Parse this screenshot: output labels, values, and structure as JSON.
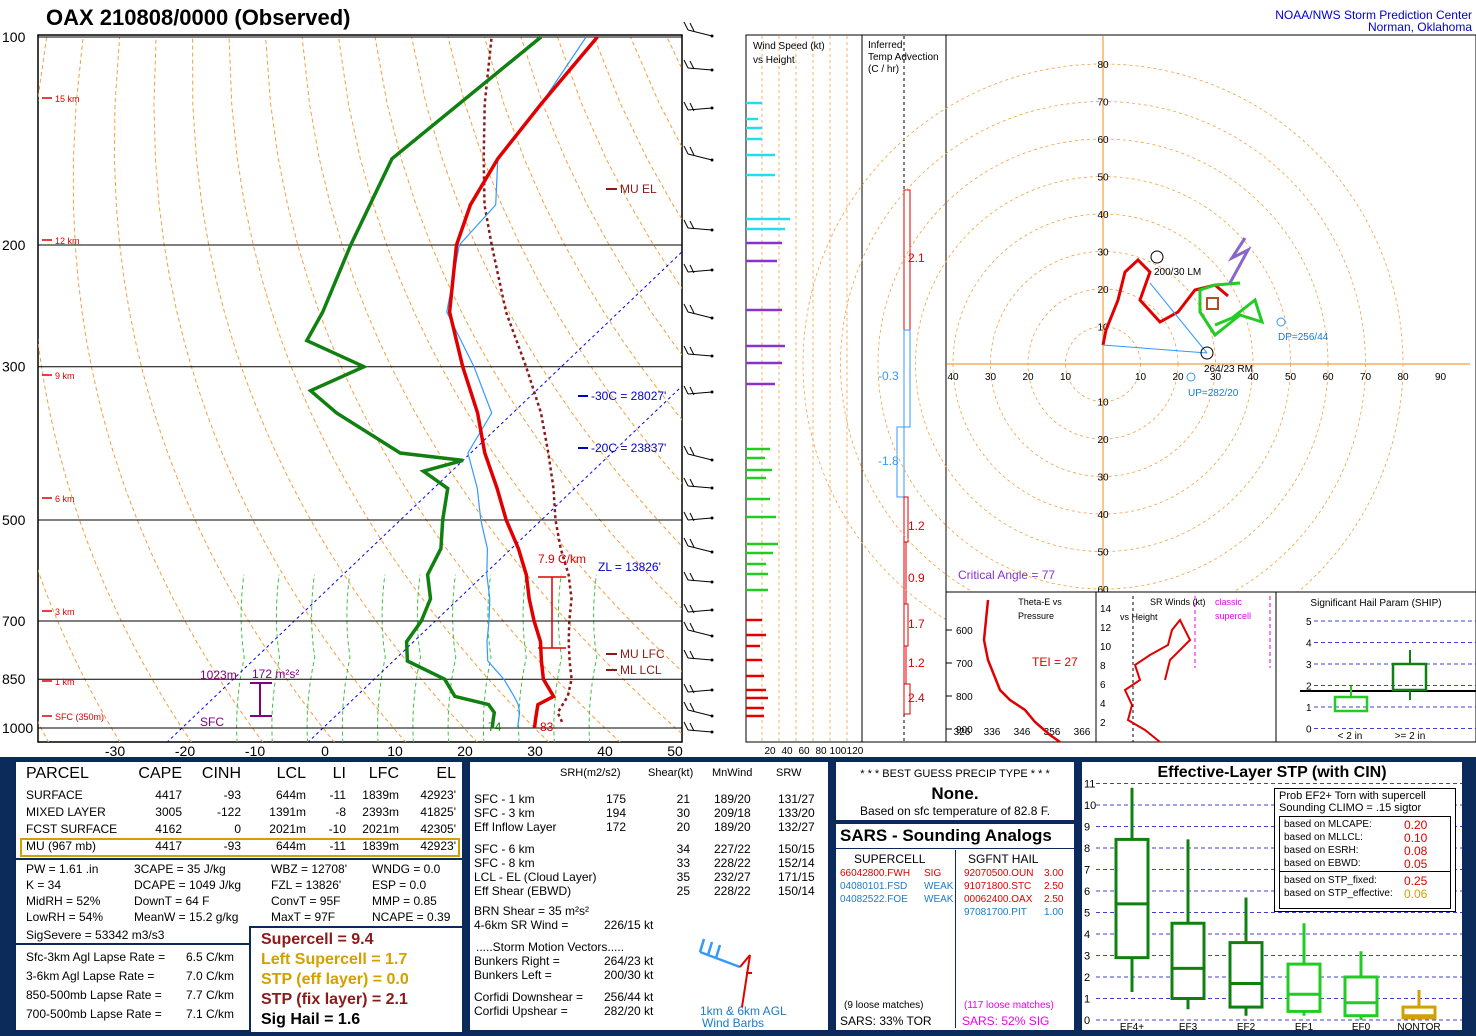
{
  "header": {
    "title": "OAX   210808/0000  (Observed)",
    "credit_line1": "NOAA/NWS Storm Prediction Center",
    "credit_line2": "Norman, Oklahoma"
  },
  "colors": {
    "panel_border": "#0a2a5e",
    "bottom_bg": "#0d2b5a",
    "temp": "#e00000",
    "dew": "#108010",
    "wetbulb": "#3399ff",
    "isotherm": "#0000ee",
    "dryadiabat": "#f0a040",
    "moistadiabat": "#40c040",
    "mixing": "#a000a0",
    "parcel": "#8b1a1a"
  },
  "chart_data": {
    "type": "line",
    "title": "",
    "skewt": {
      "pressure_ticks": [
        "100",
        "200",
        "300",
        "500",
        "700",
        "850",
        "1000"
      ],
      "temp_ticks": [
        "-30",
        "-20",
        "-10",
        "0",
        "10",
        "20",
        "30",
        "40",
        "50"
      ],
      "height_marks": [
        "15 km",
        "12 km",
        "9 km",
        "6 km",
        "3 km",
        "1 km",
        "SFC (350m)"
      ],
      "temperature_profile": [
        [
          1000,
          30
        ],
        [
          975,
          29
        ],
        [
          950,
          28
        ],
        [
          925,
          27
        ],
        [
          900,
          28
        ],
        [
          850,
          24
        ],
        [
          800,
          21
        ],
        [
          750,
          18
        ],
        [
          700,
          14
        ],
        [
          650,
          10
        ],
        [
          600,
          6
        ],
        [
          550,
          1
        ],
        [
          500,
          -5
        ],
        [
          450,
          -11
        ],
        [
          400,
          -18
        ],
        [
          350,
          -25
        ],
        [
          300,
          -34
        ],
        [
          250,
          -44
        ],
        [
          200,
          -53
        ],
        [
          175,
          -57
        ],
        [
          150,
          -60
        ],
        [
          125,
          -62
        ],
        [
          100,
          -64
        ]
      ],
      "dewpoint_profile": [
        [
          1000,
          24
        ],
        [
          975,
          23
        ],
        [
          950,
          22
        ],
        [
          925,
          20
        ],
        [
          900,
          14
        ],
        [
          850,
          10
        ],
        [
          800,
          2
        ],
        [
          750,
          -1
        ],
        [
          700,
          -2
        ],
        [
          650,
          -4
        ],
        [
          600,
          -8
        ],
        [
          550,
          -10
        ],
        [
          500,
          -14
        ],
        [
          450,
          -18
        ],
        [
          425,
          -24
        ],
        [
          410,
          -20
        ],
        [
          400,
          -30
        ],
        [
          350,
          -45
        ],
        [
          325,
          -52
        ],
        [
          300,
          -48
        ],
        [
          275,
          -60
        ],
        [
          250,
          -62
        ],
        [
          200,
          -68
        ],
        [
          150,
          -75
        ],
        [
          100,
          -72
        ]
      ],
      "annotations": {
        "mu_el": "MU  EL",
        "mu_lfc": "MU  LFC",
        "ml_lcl": "ML  LCL",
        "minus30": "-30C = 28027'",
        "minus20": "-20C = 23837'",
        "zl": "ZL = 13826'",
        "lapse": "7.9 C/km",
        "srh_depth": "1023m",
        "srh_value": "172 m²s²",
        "sfc_label": "SFC",
        "sfc_temp": "74",
        "sfc_tval": "83"
      }
    },
    "wind_speed_panel": {
      "title": "Wind Speed (kt)\nvs Height",
      "axis": [
        "20",
        "40",
        "60",
        "80",
        "100",
        "120"
      ]
    },
    "temp_advection": {
      "title": "Inferred\nTemp Advection\n(C / hr)",
      "values": [
        "2.1",
        "-0.3",
        "-1.8",
        "1.2",
        "0.9",
        "1.7",
        "1.2",
        "2.4"
      ]
    },
    "hodograph": {
      "rings": [
        "10",
        "20",
        "30",
        "40",
        "50",
        "60",
        "70",
        "80"
      ],
      "x_ticks": [
        "40",
        "30",
        "20",
        "10",
        "10",
        "20",
        "30",
        "40",
        "50",
        "60",
        "70",
        "80",
        "90"
      ],
      "labels": {
        "lm": "200/30 LM",
        "rm": "264/23 RM",
        "dp": "DP=256/44",
        "up": "UP=282/20",
        "crit": "Critical Angle = 77"
      }
    },
    "theta_e": {
      "title": "Theta-E vs\nPressure",
      "tei": "TEI = 27",
      "p_ticks": [
        "600",
        "700",
        "800",
        "900"
      ],
      "x_ticks": [
        "326",
        "336",
        "346",
        "356",
        "366"
      ]
    },
    "sr_winds": {
      "title": "SR Winds (kt)\nvs Height",
      "sub": "classic\nsupercell",
      "y_ticks": [
        "14",
        "12",
        "10",
        "8",
        "6",
        "4",
        "2"
      ]
    },
    "ship": {
      "title": "Significant Hail Param (SHIP)",
      "y_ticks": [
        "5",
        "4",
        "3",
        "2",
        "1",
        "0"
      ],
      "x_labels": [
        "< 2 in",
        ">= 2 in"
      ]
    }
  },
  "parcel_table": {
    "headers": [
      "PARCEL",
      "CAPE",
      "CINH",
      "LCL",
      "LI",
      "LFC",
      "EL"
    ],
    "rows": [
      [
        "SURFACE",
        "4417",
        "-93",
        "644m",
        "-11",
        "1839m",
        "42923'"
      ],
      [
        "MIXED LAYER",
        "3005",
        "-122",
        "1391m",
        "-8",
        "2393m",
        "41825'"
      ],
      [
        "FCST SURFACE",
        "4162",
        "0",
        "2021m",
        "-10",
        "2021m",
        "42305'"
      ],
      [
        "MU  (967 mb)",
        "4417",
        "-93",
        "644m",
        "-11",
        "1839m",
        "42923'"
      ]
    ]
  },
  "indices": [
    [
      "PW = 1.61 .in",
      "3CAPE = 35 J/kg",
      "WBZ = 12708'",
      "WNDG = 0.0"
    ],
    [
      "K = 34",
      "DCAPE = 1049 J/kg",
      "FZL = 13826'",
      "ESP = 0.0"
    ],
    [
      "MidRH = 52%",
      "DownT = 64 F",
      "ConvT = 95F",
      "MMP = 0.85"
    ],
    [
      "LowRH = 54%",
      "MeanW = 15.2 g/kg",
      "MaxT = 97F",
      "NCAPE = 0.39"
    ]
  ],
  "sigsevere": "SigSevere = 53342 m3/s3",
  "lapse_rates": [
    [
      "Sfc-3km Agl Lapse Rate =",
      "6.5 C/km"
    ],
    [
      "3-6km Agl Lapse Rate =",
      "7.0 C/km"
    ],
    [
      "850-500mb Lapse Rate =",
      "7.7 C/km"
    ],
    [
      "700-500mb Lapse Rate =",
      "7.1 C/km"
    ]
  ],
  "composites": [
    {
      "text": "Supercell = 9.4",
      "color": "#8b1a1a"
    },
    {
      "text": "Left Supercell = 1.7",
      "color": "#d4a000"
    },
    {
      "text": "STP (eff layer) = 0.0",
      "color": "#d4a000"
    },
    {
      "text": "STP (fix layer) = 2.1",
      "color": "#8b1a1a"
    },
    {
      "text": "Sig Hail = 1.6",
      "color": "#000000"
    }
  ],
  "kinematics": {
    "headers": [
      "SRH(m2/s2)",
      "Shear(kt)",
      "MnWind",
      "SRW"
    ],
    "rows1": [
      [
        "SFC - 1 km",
        "175",
        "21",
        "189/20",
        "131/27"
      ],
      [
        "SFC - 3 km",
        "194",
        "30",
        "209/18",
        "133/20"
      ],
      [
        "Eff Inflow Layer",
        "172",
        "20",
        "189/20",
        "132/27"
      ]
    ],
    "rows2": [
      [
        "SFC - 6 km",
        "",
        "34",
        "227/22",
        "150/15"
      ],
      [
        "SFC - 8 km",
        "",
        "33",
        "228/22",
        "152/14"
      ],
      [
        "LCL - EL (Cloud Layer)",
        "",
        "35",
        "232/27",
        "171/15"
      ],
      [
        "Eff Shear (EBWD)",
        "",
        "25",
        "228/22",
        "150/14"
      ]
    ],
    "brn": "BRN Shear =  35 m²s²",
    "sr46_label": "4-6km SR Wind =",
    "sr46_val": "226/15 kt",
    "storm_title": ".....Storm Motion Vectors.....",
    "motions": [
      [
        "Bunkers Right =",
        "264/23 kt"
      ],
      [
        "Bunkers Left =",
        "200/30 kt"
      ],
      [
        "Corfidi Downshear =",
        "256/44 kt"
      ],
      [
        "Corfidi Upshear =",
        "282/20 kt"
      ]
    ],
    "barb_label1": "1km & 6km AGL",
    "barb_label2": "Wind Barbs"
  },
  "precip": {
    "title": "* * * BEST GUESS PRECIP TYPE * * *",
    "value": "None.",
    "basis": "Based on sfc temperature of 82.8 F."
  },
  "sars": {
    "title": "SARS - Sounding Analogs",
    "col1": "SUPERCELL",
    "col2": "SGFNT HAIL",
    "supercell": [
      [
        "66042800.FWH",
        "SIG",
        "#e00000"
      ],
      [
        "04080101.FSD",
        "WEAK",
        "#1a7acc"
      ],
      [
        "04082522.FOE",
        "WEAK",
        "#1a7acc"
      ]
    ],
    "hail": [
      [
        "92070500.OUN",
        "3.00",
        "#e00000"
      ],
      [
        "91071800.STC",
        "2.50",
        "#e00000"
      ],
      [
        "00062400.OAX",
        "2.50",
        "#e00000"
      ],
      [
        "97081700.PIT",
        "1.00",
        "#1a7acc"
      ]
    ],
    "loose1": "(9 loose matches)",
    "loose2": "(117 loose matches)",
    "pct1": "SARS:  33% TOR",
    "pct2": "SARS:  52% SIG"
  },
  "stp": {
    "title": "Effective-Layer STP (with CIN)",
    "legend_title1": "Prob EF2+ Torn with supercell",
    "legend_title2": "Sounding CLIMO = .15 sigtor",
    "probs": [
      [
        "based on MLCAPE:",
        "0.20",
        "#e00000"
      ],
      [
        "based on MLLCL:",
        "0.10",
        "#e00000"
      ],
      [
        "based on ESRH:",
        "0.08",
        "#e00000"
      ],
      [
        "based on EBWD:",
        "0.05",
        "#e00000"
      ],
      [
        "based on STP_fixed:",
        "0.25",
        "#e00000"
      ],
      [
        "based on STP_effective:",
        "0.06",
        "#d4a000"
      ]
    ],
    "y_ticks": [
      "11",
      "10",
      "9",
      "8",
      "7",
      "6",
      "5",
      "4",
      "3",
      "2",
      "1",
      "0"
    ],
    "categories": [
      "EF4+",
      "EF3",
      "EF2",
      "EF1",
      "EF0",
      "NONTOR"
    ]
  }
}
